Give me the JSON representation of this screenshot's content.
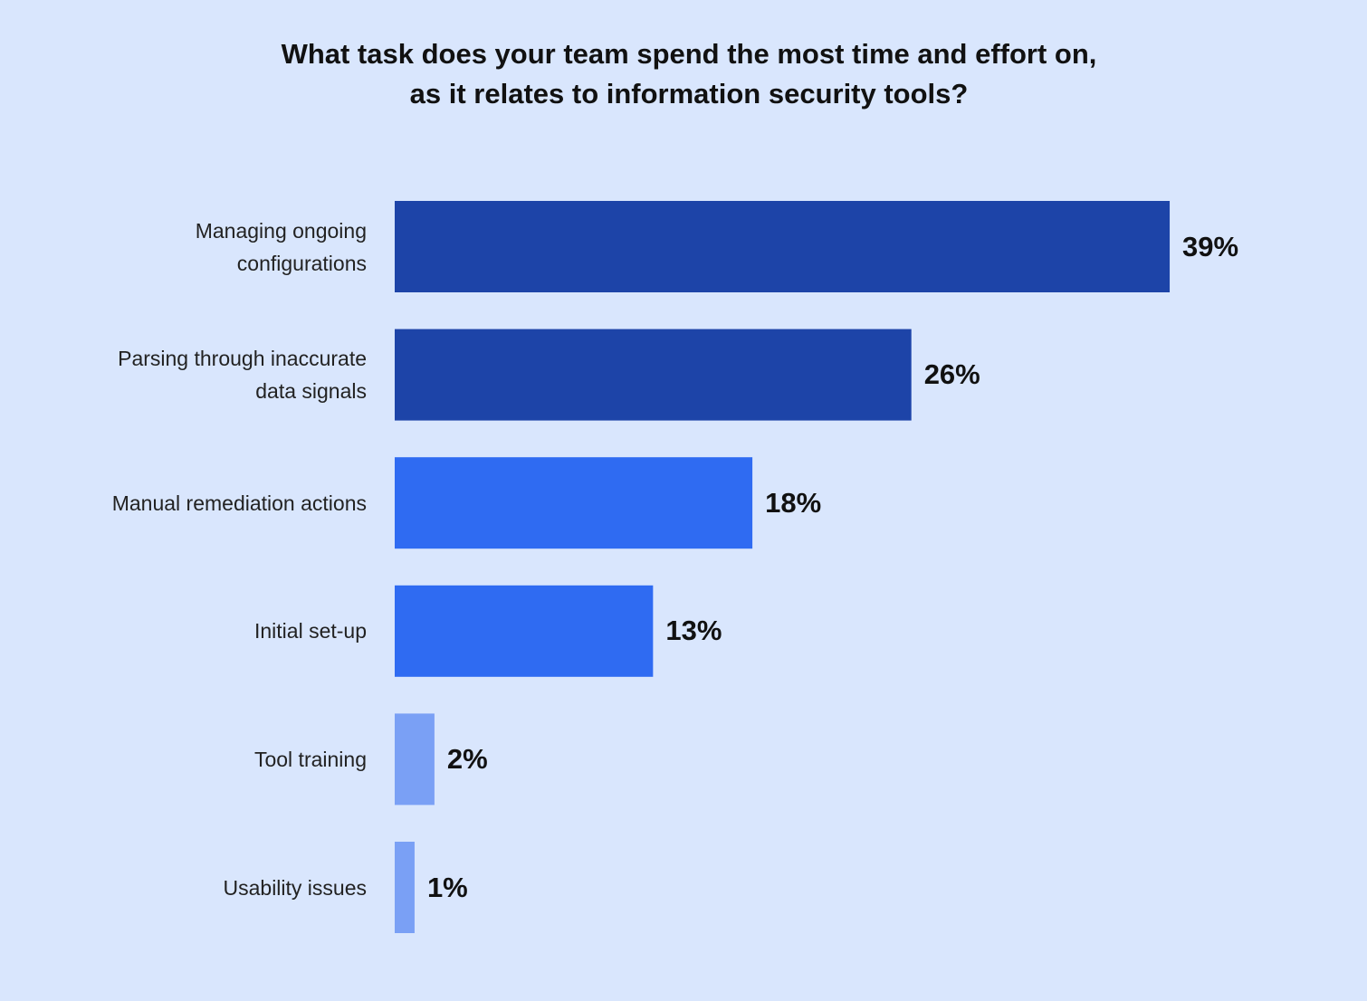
{
  "chart_data": {
    "type": "bar",
    "orientation": "horizontal",
    "title": "What task does your team spend the most time and effort on, as it relates to information security tools?",
    "categories": [
      "Managing ongoing configurations",
      "Parsing through inaccurate data signals",
      "Manual remediation actions",
      "Initial set-up",
      "Tool training",
      "Usability issues"
    ],
    "values": [
      39,
      26,
      18,
      13,
      2,
      1
    ],
    "value_labels": [
      "39%",
      "26%",
      "18%",
      "13%",
      "2%",
      "1%"
    ],
    "colors": [
      "#1d44a8",
      "#1d44a8",
      "#2f6bf2",
      "#2f6bf2",
      "#7aa0f5",
      "#7aa0f5"
    ]
  }
}
